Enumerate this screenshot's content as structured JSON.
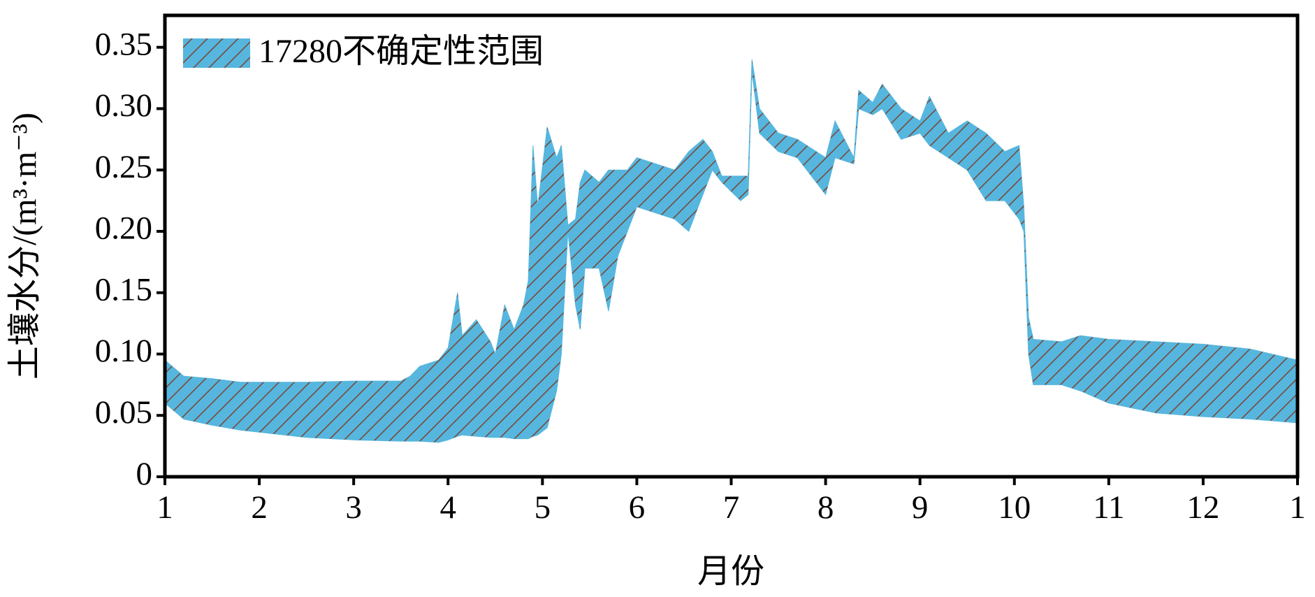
{
  "chart_data": {
    "type": "band",
    "xlabel": "月份",
    "ylabel": "土壤水分/(m³·m⁻³)",
    "xlim": [
      1,
      13
    ],
    "xticks": [
      1,
      2,
      3,
      4,
      5,
      6,
      7,
      8,
      9,
      10,
      11,
      12,
      {
        "value": 13,
        "label": "1"
      }
    ],
    "ylim": [
      0,
      0.376
    ],
    "yticks": [
      0,
      0.05,
      {
        "value": 0.1,
        "label": "0.10"
      },
      0.15,
      {
        "value": 0.2,
        "label": "0.20"
      },
      0.25,
      {
        "value": 0.3,
        "label": "0.30"
      },
      0.35
    ],
    "legend": "upper left",
    "hatch": "/",
    "x": [
      1.0,
      1.2,
      1.5,
      1.8,
      2.5,
      3.0,
      3.5,
      3.6,
      3.7,
      3.9,
      4.0,
      4.1,
      4.15,
      4.3,
      4.45,
      4.5,
      4.6,
      4.7,
      4.8,
      4.85,
      4.9,
      4.95,
      5.05,
      5.15,
      5.2,
      5.27,
      5.35,
      5.4,
      5.45,
      5.6,
      5.7,
      5.8,
      5.9,
      6.0,
      6.2,
      6.4,
      6.55,
      6.7,
      6.8,
      6.9,
      7.1,
      7.18,
      7.22,
      7.3,
      7.5,
      7.7,
      7.9,
      8.0,
      8.1,
      8.3,
      8.35,
      8.5,
      8.6,
      8.8,
      9.0,
      9.1,
      9.3,
      9.5,
      9.7,
      9.9,
      10.05,
      10.1,
      10.15,
      10.2,
      10.5,
      10.7,
      11.0,
      11.5,
      12.0,
      12.5,
      13.0
    ],
    "series": [
      {
        "name": "17280不确定性范围",
        "color": "#56b6de",
        "lower": [
          0.06,
          0.047,
          0.042,
          0.038,
          0.032,
          0.03,
          0.029,
          0.029,
          0.029,
          0.028,
          0.03,
          0.033,
          0.034,
          0.033,
          0.032,
          0.032,
          0.032,
          0.031,
          0.031,
          0.031,
          0.033,
          0.034,
          0.04,
          0.07,
          0.1,
          0.2,
          0.14,
          0.12,
          0.17,
          0.17,
          0.135,
          0.18,
          0.2,
          0.22,
          0.215,
          0.21,
          0.2,
          0.23,
          0.25,
          0.24,
          0.225,
          0.23,
          0.33,
          0.28,
          0.265,
          0.26,
          0.24,
          0.23,
          0.26,
          0.255,
          0.3,
          0.295,
          0.3,
          0.275,
          0.28,
          0.27,
          0.26,
          0.25,
          0.225,
          0.225,
          0.21,
          0.2,
          0.1,
          0.075,
          0.075,
          0.07,
          0.06,
          0.052,
          0.049,
          0.047,
          0.044
        ],
        "upper": [
          0.095,
          0.082,
          0.08,
          0.077,
          0.077,
          0.078,
          0.078,
          0.082,
          0.09,
          0.095,
          0.105,
          0.15,
          0.115,
          0.128,
          0.11,
          0.1,
          0.14,
          0.12,
          0.14,
          0.16,
          0.27,
          0.22,
          0.285,
          0.26,
          0.27,
          0.205,
          0.21,
          0.24,
          0.25,
          0.24,
          0.25,
          0.25,
          0.25,
          0.26,
          0.255,
          0.25,
          0.265,
          0.275,
          0.265,
          0.245,
          0.245,
          0.245,
          0.34,
          0.3,
          0.28,
          0.275,
          0.265,
          0.26,
          0.29,
          0.26,
          0.315,
          0.305,
          0.32,
          0.3,
          0.29,
          0.31,
          0.28,
          0.29,
          0.28,
          0.265,
          0.27,
          0.22,
          0.13,
          0.112,
          0.11,
          0.115,
          0.112,
          0.11,
          0.108,
          0.104,
          0.095
        ]
      }
    ]
  }
}
